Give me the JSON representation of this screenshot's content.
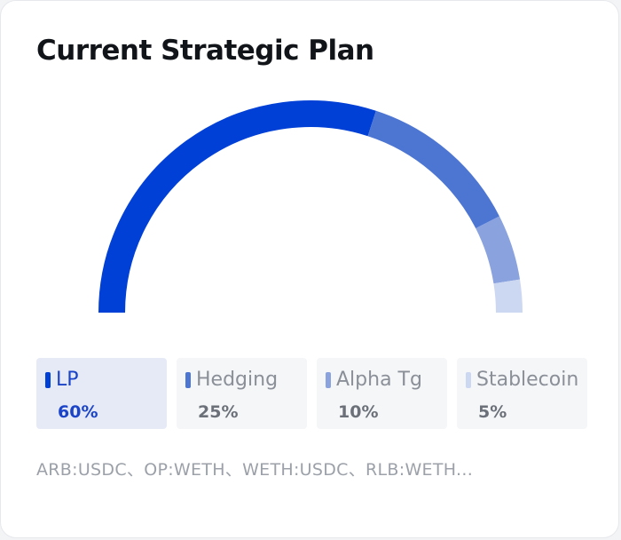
{
  "card": {
    "title": "Current Strategic Plan",
    "pairs_text": "ARB:USDC、OP:WETH、WETH:USDC、RLB:WETH..."
  },
  "chart_data": {
    "type": "pie",
    "style": "semicircle-gauge",
    "categories": [
      "LP",
      "Hedging",
      "Alpha Tg",
      "Stablecoin"
    ],
    "values": [
      60,
      25,
      10,
      5
    ],
    "value_labels": [
      "60%",
      "25%",
      "10%",
      "5%"
    ],
    "colors": [
      "#0040d6",
      "#4d75d2",
      "#8aa3df",
      "#ccd7f2"
    ],
    "active_index": 0,
    "legend_position": "bottom"
  }
}
